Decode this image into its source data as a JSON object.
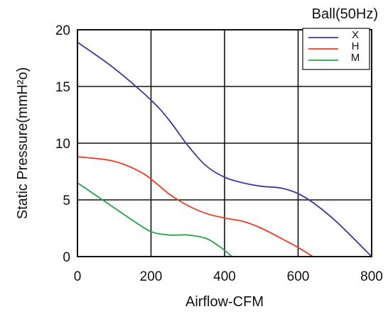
{
  "chart_data": {
    "type": "line",
    "title": "Ball(50Hz)",
    "xlabel": "Airflow-CFM",
    "ylabel": "Static Pressure(mmH²o)",
    "xlim": [
      0,
      800
    ],
    "ylim": [
      0,
      20
    ],
    "x_ticks": [
      "0",
      "200",
      "400",
      "600",
      "800"
    ],
    "y_ticks": [
      "0",
      "5",
      "10",
      "15",
      "20"
    ],
    "grid": true,
    "legend_position": "top-right",
    "series": [
      {
        "name": "X",
        "color": "#3a3aa0",
        "points": [
          [
            0,
            18.9
          ],
          [
            100,
            16.6
          ],
          [
            200,
            13.8
          ],
          [
            250,
            12.0
          ],
          [
            300,
            9.8
          ],
          [
            350,
            8.0
          ],
          [
            400,
            7.0
          ],
          [
            450,
            6.5
          ],
          [
            500,
            6.2
          ],
          [
            560,
            6.0
          ],
          [
            620,
            5.2
          ],
          [
            700,
            3.2
          ],
          [
            800,
            0.0
          ]
        ]
      },
      {
        "name": "H",
        "color": "#ee3a22",
        "points": [
          [
            0,
            8.8
          ],
          [
            100,
            8.4
          ],
          [
            180,
            7.3
          ],
          [
            250,
            5.5
          ],
          [
            300,
            4.5
          ],
          [
            350,
            3.8
          ],
          [
            400,
            3.4
          ],
          [
            450,
            3.1
          ],
          [
            500,
            2.5
          ],
          [
            560,
            1.5
          ],
          [
            600,
            0.8
          ],
          [
            640,
            0.0
          ]
        ]
      },
      {
        "name": "M",
        "color": "#25a246",
        "points": [
          [
            0,
            6.5
          ],
          [
            50,
            5.4
          ],
          [
            100,
            4.3
          ],
          [
            150,
            3.2
          ],
          [
            200,
            2.2
          ],
          [
            250,
            1.9
          ],
          [
            300,
            1.9
          ],
          [
            350,
            1.6
          ],
          [
            390,
            0.8
          ],
          [
            420,
            0.0
          ]
        ]
      }
    ]
  }
}
